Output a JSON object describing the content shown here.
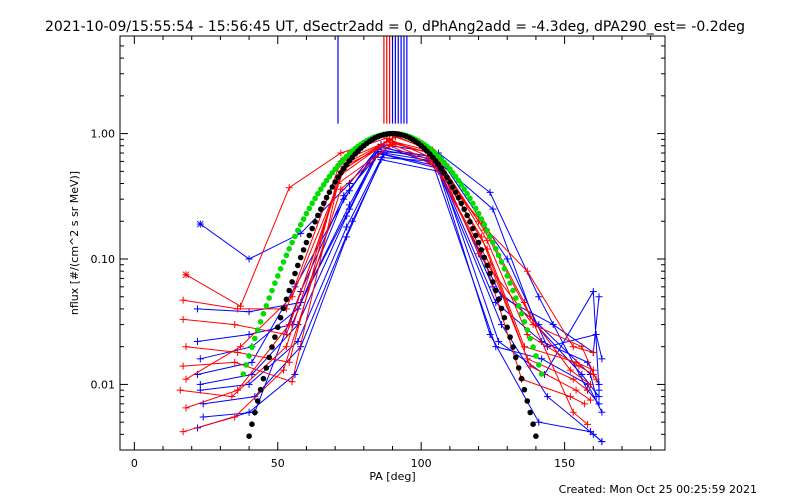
{
  "chart_data": {
    "type": "line",
    "title": "2021-10-09/15:55:54 - 15:56:45 UT, dSectr2add = 0, dPhAng2add = -4.3deg, dPA290_est= -0.2deg",
    "xlabel": "PA [deg]",
    "ylabel": "nflux [#/(cm^2 s sr MeV)]",
    "footer": "Created: Mon Oct 25 00:25:59 2021",
    "xlim": [
      -5,
      185
    ],
    "ylim": [
      0.003,
      6.0
    ],
    "yscale": "log",
    "grid": false,
    "xticks": [
      0,
      50,
      100,
      150
    ],
    "yticks": [
      0.01,
      0.1,
      1.0
    ],
    "xtick_labels": [
      "0",
      "50",
      "100",
      "150"
    ],
    "ytick_labels": [
      "0.01",
      "0.10",
      "1.00"
    ],
    "colors": {
      "red": "#ff0000",
      "blue": "#0000ff",
      "green": "#00dd00",
      "black": "#000000"
    },
    "pa_markers": {
      "y_range": [
        1.2,
        6.0
      ],
      "lines": [
        {
          "x": 71,
          "color": "#0000ff"
        },
        {
          "x": 87,
          "color": "#ff0000"
        },
        {
          "x": 88,
          "color": "#ff0000"
        },
        {
          "x": 89,
          "color": "#ff0000"
        },
        {
          "x": 90,
          "color": "#0000ff"
        },
        {
          "x": 91,
          "color": "#0000ff"
        },
        {
          "x": 92,
          "color": "#0000ff"
        },
        {
          "x": 93,
          "color": "#0000ff"
        },
        {
          "x": 94,
          "color": "#0000ff"
        },
        {
          "x": 95,
          "color": "#0000ff"
        }
      ]
    },
    "fit_curves": [
      {
        "color": "#00dd00",
        "center": 90,
        "sigma": 17.5,
        "peak": 1.0,
        "x_range": [
          38,
          142
        ]
      },
      {
        "color": "#000000",
        "center": 90,
        "sigma": 15.0,
        "peak": 1.0,
        "x_range": [
          40,
          140
        ]
      }
    ],
    "series": [
      {
        "color": "#0000ff",
        "marker": "*",
        "x": [
          23,
          40,
          58,
          75,
          86,
          106,
          124,
          141,
          158,
          162
        ],
        "y": [
          0.19,
          0.1,
          0.16,
          0.4,
          0.82,
          0.7,
          0.34,
          0.05,
          0.009,
          0.007
        ]
      },
      {
        "color": "#0000ff",
        "marker": "+",
        "x": [
          22,
          40,
          58,
          75,
          85,
          105,
          125,
          140,
          156,
          162
        ],
        "y": [
          0.04,
          0.038,
          0.045,
          0.25,
          0.75,
          0.62,
          0.25,
          0.03,
          0.012,
          0.008
        ]
      },
      {
        "color": "#0000ff",
        "marker": "+",
        "x": [
          22,
          40,
          55,
          73,
          86,
          104,
          126,
          142,
          158,
          163
        ],
        "y": [
          0.022,
          0.025,
          0.03,
          0.3,
          0.8,
          0.58,
          0.02,
          0.016,
          0.01,
          0.006
        ]
      },
      {
        "color": "#0000ff",
        "marker": "+",
        "x": [
          23,
          41,
          57,
          74,
          85,
          106,
          127,
          143,
          160,
          162
        ],
        "y": [
          0.01,
          0.012,
          0.03,
          0.22,
          0.7,
          0.55,
          0.022,
          0.012,
          0.055,
          0.009
        ]
      },
      {
        "color": "#0000ff",
        "marker": "+",
        "x": [
          24,
          42,
          58,
          76,
          87,
          107,
          125,
          141,
          159,
          161
        ],
        "y": [
          0.007,
          0.008,
          0.02,
          0.2,
          0.68,
          0.52,
          0.06,
          0.03,
          0.012,
          0.008
        ]
      },
      {
        "color": "#0000ff",
        "marker": "+",
        "x": [
          22,
          40,
          56,
          74,
          86,
          106,
          128,
          144,
          160,
          163
        ],
        "y": [
          0.0045,
          0.006,
          0.012,
          0.15,
          0.62,
          0.5,
          0.03,
          0.008,
          0.004,
          0.0035
        ]
      },
      {
        "color": "#0000ff",
        "marker": "+",
        "x": [
          23,
          41,
          57,
          75,
          84,
          105,
          126,
          142,
          158,
          162
        ],
        "y": [
          0.016,
          0.02,
          0.04,
          0.27,
          0.65,
          0.6,
          0.045,
          0.022,
          0.015,
          0.01
        ]
      },
      {
        "color": "#0000ff",
        "marker": "+",
        "x": [
          24,
          42,
          58,
          73,
          86,
          106,
          130,
          144,
          161,
          163
        ],
        "y": [
          0.0055,
          0.006,
          0.055,
          0.32,
          0.72,
          0.66,
          0.1,
          0.02,
          0.025,
          0.016
        ]
      },
      {
        "color": "#0000ff",
        "marker": "+",
        "x": [
          22,
          41,
          56,
          75,
          85,
          104,
          128,
          146,
          160,
          162
        ],
        "y": [
          0.012,
          0.015,
          0.06,
          0.35,
          0.78,
          0.65,
          0.05,
          0.03,
          0.018,
          0.05
        ]
      },
      {
        "color": "#0000ff",
        "marker": "+",
        "x": [
          23,
          40,
          57,
          74,
          87,
          105,
          124,
          141,
          159,
          163
        ],
        "y": [
          0.009,
          0.01,
          0.022,
          0.18,
          0.7,
          0.6,
          0.025,
          0.005,
          0.0042,
          0.0035
        ]
      },
      {
        "color": "#ff0000",
        "marker": "*",
        "x": [
          18,
          37,
          54,
          72,
          88,
          105,
          120,
          137,
          153,
          160
        ],
        "y": [
          0.075,
          0.042,
          0.37,
          0.7,
          0.92,
          0.62,
          0.2,
          0.08,
          0.02,
          0.018
        ]
      },
      {
        "color": "#ff0000",
        "marker": "+",
        "x": [
          17,
          36,
          53,
          72,
          89,
          104,
          122,
          138,
          152,
          159
        ],
        "y": [
          0.047,
          0.04,
          0.04,
          0.6,
          0.88,
          0.72,
          0.17,
          0.035,
          0.013,
          0.01
        ]
      },
      {
        "color": "#ff0000",
        "marker": "+",
        "x": [
          17,
          35,
          53,
          73,
          90,
          103,
          123,
          136,
          154,
          160
        ],
        "y": [
          0.033,
          0.03,
          0.025,
          0.55,
          0.85,
          0.7,
          0.12,
          0.02,
          0.015,
          0.013
        ]
      },
      {
        "color": "#ff0000",
        "marker": "+",
        "x": [
          18,
          36,
          54,
          71,
          91,
          102,
          121,
          137,
          153,
          158
        ],
        "y": [
          0.02,
          0.018,
          0.015,
          0.45,
          0.96,
          0.75,
          0.15,
          0.016,
          0.011,
          0.009
        ]
      },
      {
        "color": "#ff0000",
        "marker": "+",
        "x": [
          17,
          35,
          55,
          72,
          89,
          103,
          124,
          138,
          154,
          159
        ],
        "y": [
          0.014,
          0.015,
          0.0105,
          0.5,
          0.9,
          0.65,
          0.09,
          0.014,
          0.009,
          0.0075
        ]
      },
      {
        "color": "#ff0000",
        "marker": "+",
        "x": [
          16,
          34,
          53,
          71,
          90,
          104,
          122,
          135,
          152,
          157
        ],
        "y": [
          0.009,
          0.008,
          0.02,
          0.4,
          0.82,
          0.6,
          0.1,
          0.011,
          0.008,
          0.007
        ]
      },
      {
        "color": "#ff0000",
        "marker": "+",
        "x": [
          18,
          36,
          54,
          73,
          88,
          105,
          123,
          137,
          155,
          160
        ],
        "y": [
          0.0065,
          0.009,
          0.03,
          0.52,
          0.86,
          0.68,
          0.14,
          0.025,
          0.014,
          0.012
        ]
      },
      {
        "color": "#ff0000",
        "marker": "+",
        "x": [
          17,
          35,
          52,
          72,
          89,
          103,
          121,
          136,
          153,
          158
        ],
        "y": [
          0.0042,
          0.0055,
          0.013,
          0.36,
          0.8,
          0.58,
          0.2,
          0.045,
          0.006,
          0.0048
        ]
      },
      {
        "color": "#ff0000",
        "marker": "+",
        "x": [
          18,
          37,
          55,
          74,
          91,
          104,
          120,
          139,
          156,
          161
        ],
        "y": [
          0.011,
          0.02,
          0.05,
          0.58,
          0.94,
          0.74,
          0.11,
          0.03,
          0.02,
          0.011
        ]
      }
    ]
  }
}
